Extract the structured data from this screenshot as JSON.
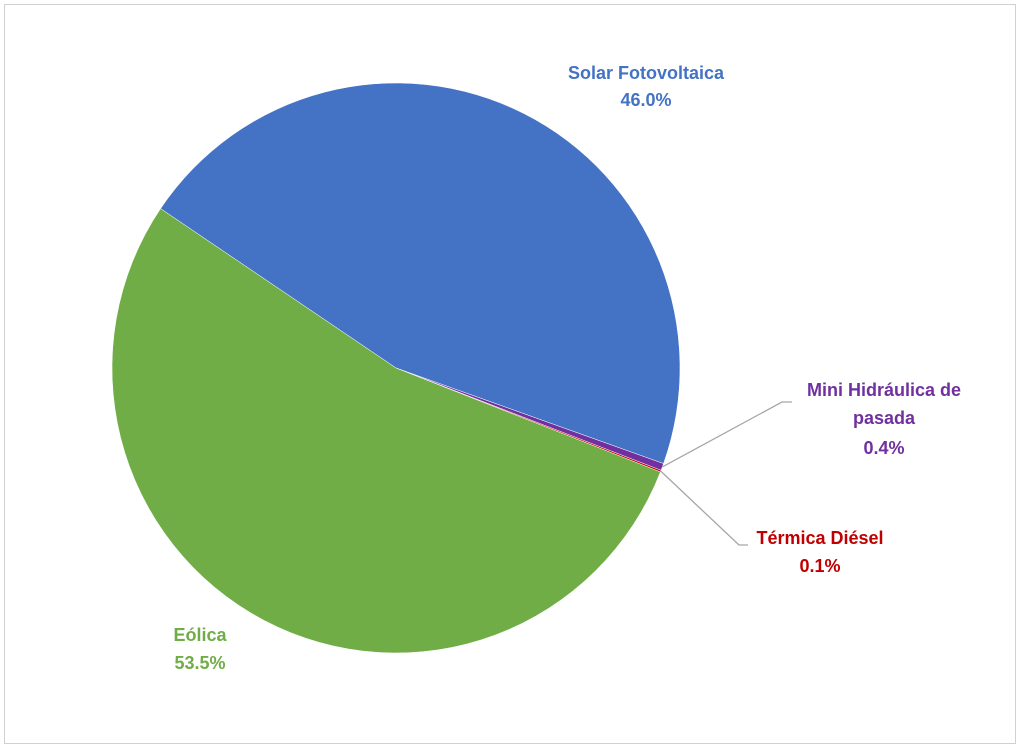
{
  "chart_data": {
    "type": "pie",
    "title": "",
    "slices": [
      {
        "label": "Solar Fotovoltaica",
        "value": 46.0,
        "display": "46.0%",
        "color": "#4472c4"
      },
      {
        "label": "Mini Hidráulica de pasada",
        "label_lines": [
          "Mini Hidráulica de",
          "pasada"
        ],
        "value": 0.4,
        "display": "0.4%",
        "color": "#7030a0"
      },
      {
        "label": "Térmica Diésel",
        "value": 0.1,
        "display": "0.1%",
        "color": "#c00000"
      },
      {
        "label": "Eólica",
        "value": 53.5,
        "display": "53.5%",
        "color": "#70ad47"
      }
    ],
    "legend": "none"
  }
}
